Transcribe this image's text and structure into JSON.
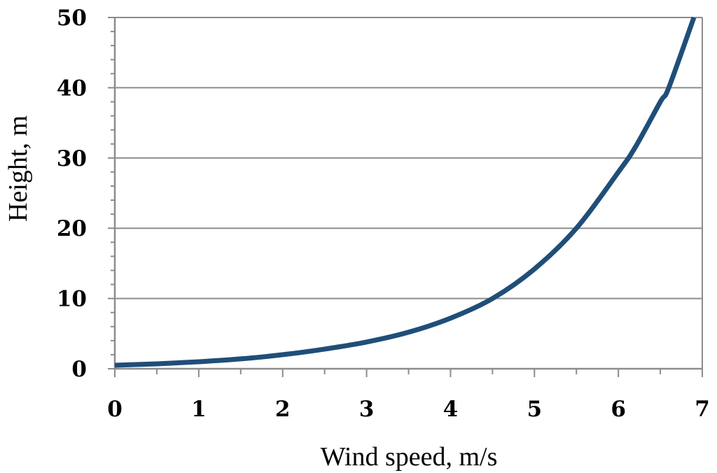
{
  "chart_data": {
    "type": "line",
    "title": "",
    "xlabel": "Wind speed, m/s",
    "ylabel": "Height, m",
    "xlim": [
      0,
      7
    ],
    "ylim": [
      0,
      50
    ],
    "x_ticks": [
      "0",
      "1",
      "2",
      "3",
      "4",
      "5",
      "6",
      "7"
    ],
    "y_ticks": [
      "0",
      "10",
      "20",
      "30",
      "40",
      "50"
    ],
    "grid": "horizontal major gridlines",
    "legend": "none",
    "series": [
      {
        "color": "#1f4e79",
        "x": [
          0,
          0.5,
          1,
          1.5,
          2,
          2.5,
          3,
          3.5,
          4,
          4.5,
          5,
          5.5,
          6,
          6.2,
          6.5,
          6.6,
          6.9
        ],
        "y": [
          0.5,
          0.7,
          1.0,
          1.4,
          2.0,
          2.8,
          3.8,
          5.2,
          7.2,
          10.0,
          14.2,
          20.0,
          28.0,
          31.5,
          38.0,
          40.0,
          50.0
        ]
      }
    ]
  }
}
